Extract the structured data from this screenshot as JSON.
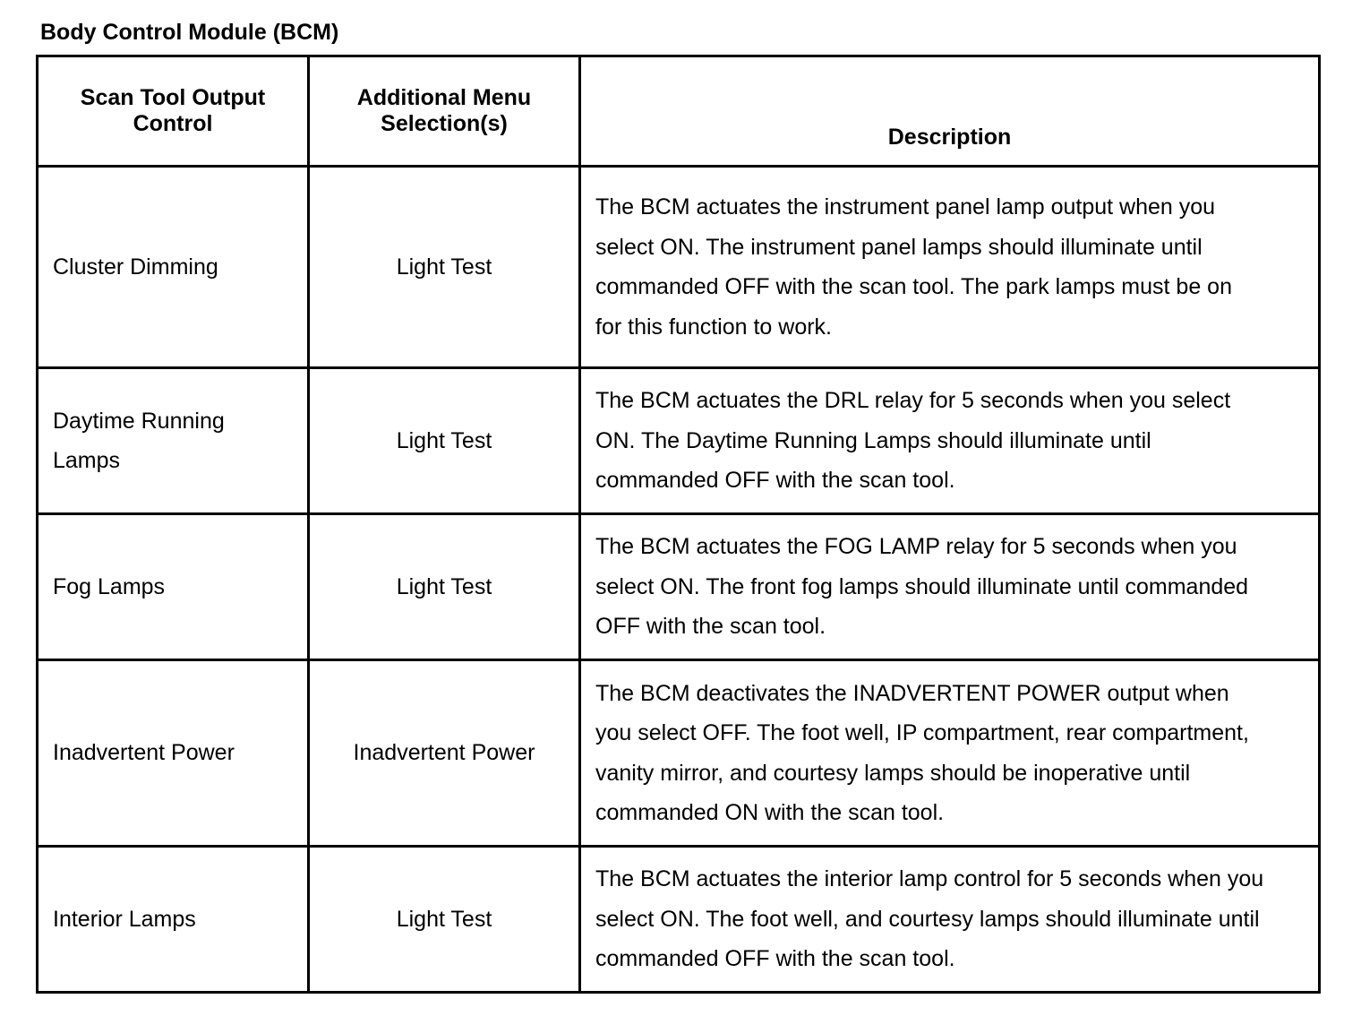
{
  "title": "Body Control Module (BCM)",
  "headers": [
    "Scan Tool Output Control",
    "Additional Menu Selection(s)",
    "Description"
  ],
  "rows": [
    {
      "control": "Cluster Dimming",
      "menu": "Light Test",
      "description": "The BCM actuates the instrument panel lamp output when you select ON. The instrument panel lamps should illuminate until commanded OFF with the scan tool. The park lamps must be on for this function to work."
    },
    {
      "control": "Daytime Running Lamps",
      "menu": "Light Test",
      "description": "The BCM actuates the DRL relay for 5 seconds when you select ON. The Daytime Running Lamps should illuminate until commanded OFF with the scan tool."
    },
    {
      "control": "Fog Lamps",
      "menu": "Light Test",
      "description": "The BCM actuates the FOG LAMP relay for 5 seconds when you select ON. The front fog lamps should illuminate until commanded OFF with the scan tool."
    },
    {
      "control": "Inadvertent Power",
      "menu": "Inadvertent Power",
      "description": "The BCM deactivates the INADVERTENT POWER output when you select OFF. The foot well, IP compartment, rear compartment, vanity mirror, and courtesy lamps should be inoperative until commanded ON with the scan tool."
    },
    {
      "control": "Interior Lamps",
      "menu": "Light Test",
      "description": "The BCM actuates the interior lamp control for 5 seconds when you select ON. The foot well, and courtesy lamps should illuminate until commanded OFF with the scan tool."
    }
  ]
}
